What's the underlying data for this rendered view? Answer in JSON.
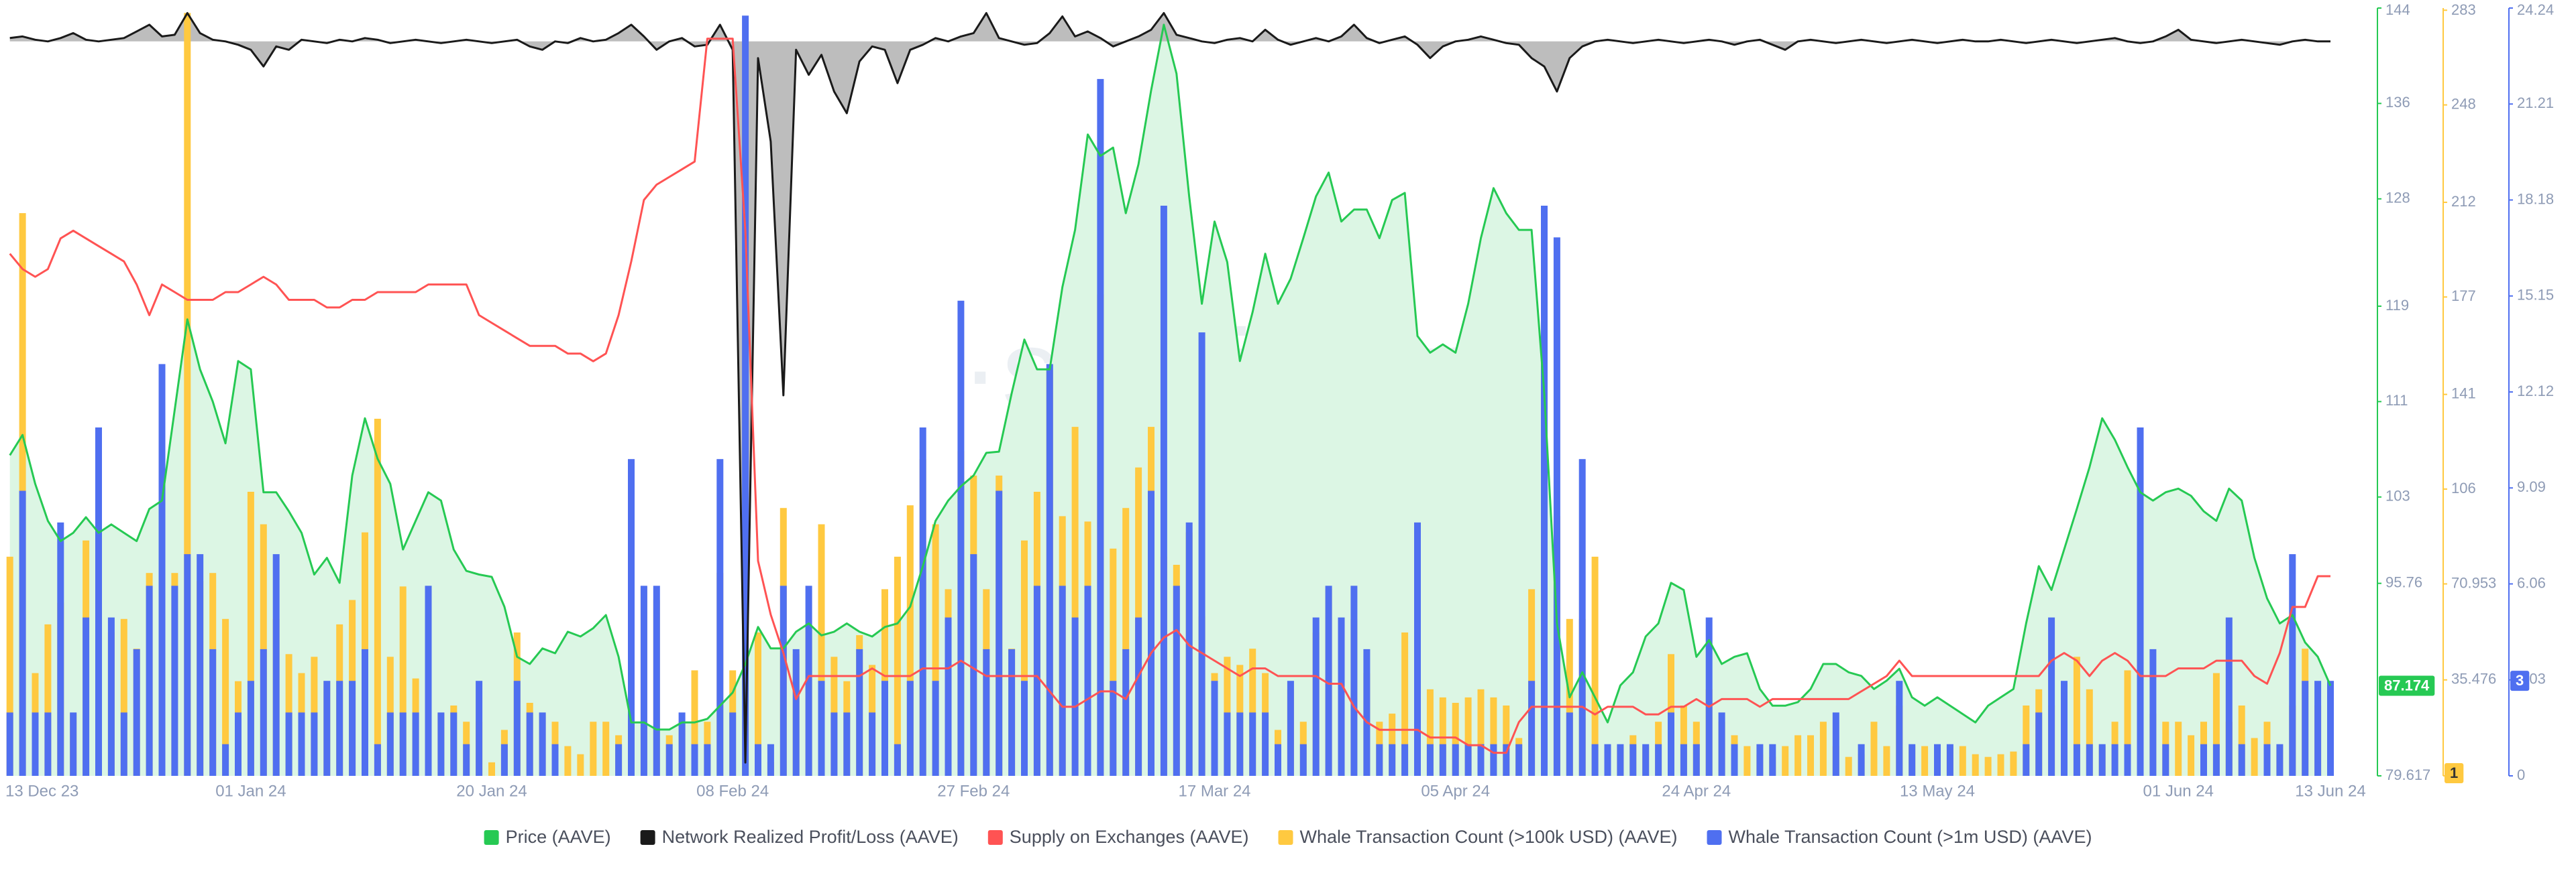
{
  "chart_data": {
    "type": "combo",
    "watermark": "·santiment·",
    "categories": [
      "13 Dec 23",
      null,
      null,
      null,
      null,
      null,
      null,
      null,
      null,
      null,
      null,
      null,
      null,
      null,
      null,
      null,
      null,
      null,
      null,
      "01 Jan 24",
      null,
      null,
      null,
      null,
      null,
      null,
      null,
      null,
      null,
      null,
      null,
      null,
      null,
      null,
      null,
      null,
      null,
      null,
      "20 Jan 24",
      null,
      null,
      null,
      null,
      null,
      null,
      null,
      null,
      null,
      null,
      null,
      null,
      null,
      null,
      null,
      null,
      null,
      null,
      "08 Feb 24",
      null,
      null,
      null,
      null,
      null,
      null,
      null,
      null,
      null,
      null,
      null,
      null,
      null,
      null,
      null,
      null,
      null,
      null,
      "27 Feb 24",
      null,
      null,
      null,
      null,
      null,
      null,
      null,
      null,
      null,
      null,
      null,
      null,
      null,
      null,
      null,
      null,
      null,
      null,
      "17 Mar 24",
      null,
      null,
      null,
      null,
      null,
      null,
      null,
      null,
      null,
      null,
      null,
      null,
      null,
      null,
      null,
      null,
      null,
      null,
      "05 Apr 24",
      null,
      null,
      null,
      null,
      null,
      null,
      null,
      null,
      null,
      null,
      null,
      null,
      null,
      null,
      null,
      null,
      null,
      null,
      "24 Apr 24",
      null,
      null,
      null,
      null,
      null,
      null,
      null,
      null,
      null,
      null,
      null,
      null,
      null,
      null,
      null,
      null,
      null,
      null,
      "13 May 24",
      null,
      null,
      null,
      null,
      null,
      null,
      null,
      null,
      null,
      null,
      null,
      null,
      null,
      null,
      null,
      null,
      null,
      null,
      "01 Jun 24",
      null,
      null,
      null,
      null,
      null,
      null,
      null,
      null,
      null,
      null,
      null,
      "13 Jun 24"
    ],
    "ylim": [
      79.617,
      144
    ],
    "yticks": [
      79.617,
      95.76,
      103,
      111,
      119,
      128,
      136,
      144
    ],
    "y2lim": [
      0,
      283.808
    ],
    "y2ticks": [
      0,
      35.476,
      70.953,
      106,
      141,
      177,
      212,
      248,
      283
    ],
    "y3lim": [
      0,
      24.24
    ],
    "y3ticks": [
      0,
      3.03,
      6.06,
      9.09,
      12.12,
      15.15,
      18.18,
      21.21,
      24.24
    ],
    "y4lim": [
      0,
      100
    ],
    "y5lim": [
      -440,
      20
    ],
    "grid": false,
    "legend": "bottom",
    "series": [
      {
        "name": "Price (AAVE)",
        "type": "area",
        "axis": "y",
        "color": "#26c953",
        "fill": "#dcf6e4",
        "values": [
          106.5,
          108.2,
          104.1,
          101,
          99.3,
          100,
          101.3,
          100,
          100.7,
          100,
          99.3,
          102,
          102.7,
          110.3,
          117.9,
          113.7,
          111,
          107.5,
          114.4,
          113.7,
          103.4,
          103.4,
          101.8,
          100,
          96.5,
          97.9,
          95.8,
          104.8,
          109.6,
          106.2,
          104.1,
          98.6,
          101,
          103.4,
          102.7,
          98.6,
          96.8,
          96.5,
          96.3,
          93.8,
          89.6,
          89,
          90.3,
          89.9,
          91.7,
          91.3,
          92,
          93.1,
          89.6,
          84.1,
          84.1,
          83.5,
          83.5,
          84.1,
          84.1,
          84.4,
          85.5,
          86.6,
          89,
          92.1,
          90.3,
          90.3,
          91.7,
          92.4,
          91.4,
          91.7,
          92.4,
          91.7,
          91.3,
          92.1,
          92.4,
          93.8,
          97.2,
          101,
          102.7,
          103.9,
          104.8,
          106.7,
          106.8,
          111.7,
          116.2,
          113.7,
          113.7,
          120.6,
          125.4,
          133.4,
          131.6,
          132.3,
          126.8,
          130.9,
          137.1,
          142.6,
          138.5,
          128.2,
          119.2,
          126.1,
          122.7,
          114.4,
          118.5,
          123.4,
          119.2,
          121.3,
          124.7,
          128.2,
          130.2,
          126.1,
          127.1,
          127.1,
          124.7,
          127.9,
          128.5,
          116.5,
          115.1,
          115.8,
          115.1,
          119.2,
          124.7,
          128.9,
          126.8,
          125.4,
          125.4,
          111.7,
          92.4,
          86.2,
          88.3,
          86.2,
          84.1,
          87.2,
          88.3,
          91.3,
          92.4,
          95.8,
          95.2,
          89.6,
          91,
          89,
          89.6,
          89.9,
          86.9,
          85.5,
          85.5,
          85.8,
          86.9,
          89,
          89,
          88.3,
          88,
          86.9,
          87.6,
          88.6,
          86.2,
          85.5,
          86.2,
          85.5,
          84.8,
          84.1,
          85.5,
          86.2,
          86.9,
          92.4,
          97.2,
          95.2,
          98.6,
          102,
          105.5,
          109.6,
          107.8,
          105.5,
          103.4,
          102.7,
          103.4,
          103.7,
          103.1,
          101.8,
          101,
          103.7,
          102.7,
          97.9,
          94.5,
          92.4,
          93.1,
          90.8,
          89.6,
          87.174
        ]
      },
      {
        "name": "Network Realized Profit/Loss (AAVE)",
        "type": "area",
        "axis": "y5",
        "color": "#1a1a1a",
        "fill": "#bdbdbd",
        "values": [
          2,
          3,
          1,
          0,
          2,
          5,
          1,
          0,
          1,
          2,
          6,
          10,
          3,
          4,
          17,
          5,
          1,
          0,
          -2,
          -5,
          -15,
          -3,
          -5,
          1,
          0,
          -1,
          1,
          0,
          2,
          1,
          -1,
          0,
          1,
          0,
          -1,
          0,
          1,
          0,
          -1,
          0,
          1,
          -3,
          -5,
          0,
          -1,
          2,
          0,
          1,
          5,
          10,
          3,
          -5,
          0,
          2,
          -3,
          -2,
          10,
          -5,
          -432,
          -10,
          -60,
          -212,
          -5,
          -20,
          -8,
          -30,
          -43,
          -12,
          -3,
          -5,
          -25,
          -5,
          -2,
          2,
          0,
          3,
          5,
          17,
          2,
          0,
          -2,
          -1,
          5,
          15,
          3,
          6,
          2,
          -3,
          0,
          3,
          7,
          17,
          4,
          2,
          0,
          -1,
          1,
          2,
          0,
          7,
          1,
          -2,
          0,
          2,
          0,
          3,
          10,
          2,
          -1,
          1,
          3,
          -2,
          -10,
          -3,
          0,
          1,
          3,
          1,
          -1,
          -2,
          -10,
          -15,
          -30,
          -10,
          -3,
          0,
          1,
          0,
          -1,
          0,
          1,
          0,
          -1,
          0,
          1,
          0,
          -2,
          0,
          1,
          -2,
          -5,
          0,
          1,
          0,
          -1,
          0,
          1,
          0,
          -1,
          0,
          1,
          0,
          -1,
          0,
          1,
          0,
          0,
          1,
          0,
          -1,
          0,
          1,
          0,
          -1,
          0,
          1,
          2,
          0,
          -1,
          0,
          3,
          7,
          1,
          0,
          -1,
          0,
          1,
          0,
          -1,
          -2,
          0,
          1,
          0,
          0
        ]
      },
      {
        "name": "Supply on Exchanges (AAVE)",
        "type": "line",
        "axis": "y4",
        "color": "#ff5353",
        "values": [
          68,
          66,
          65,
          66,
          70,
          71,
          70,
          69,
          68,
          67,
          64,
          60,
          64,
          63,
          62,
          62,
          62,
          63,
          63,
          64,
          65,
          64,
          62,
          62,
          62,
          61,
          61,
          62,
          62,
          63,
          63,
          63,
          63,
          64,
          64,
          64,
          64,
          60,
          59,
          58,
          57,
          56,
          56,
          56,
          55,
          55,
          54,
          55,
          60,
          67,
          75,
          77,
          78,
          79,
          80,
          96,
          96,
          96,
          71,
          28,
          21,
          16,
          10,
          13,
          13,
          13,
          13,
          13,
          14,
          13,
          13,
          13,
          14,
          14,
          14,
          15,
          14,
          13,
          13,
          13,
          13,
          13,
          11,
          9,
          9,
          10,
          11,
          11,
          10,
          13,
          16,
          18,
          19,
          17,
          16,
          15,
          14,
          13,
          14,
          14,
          13,
          13,
          13,
          13,
          12,
          12,
          9,
          7,
          6,
          6,
          6,
          6,
          5,
          5,
          5,
          4,
          4,
          3,
          3,
          7,
          9,
          9,
          9,
          9,
          9,
          8,
          9,
          9,
          9,
          8,
          8,
          9,
          9,
          10,
          9,
          10,
          10,
          10,
          9,
          10,
          10,
          10,
          10,
          10,
          10,
          10,
          11,
          12,
          13,
          15,
          13,
          13,
          13,
          13,
          13,
          13,
          13,
          13,
          13,
          13,
          13,
          15,
          16,
          15,
          13,
          15,
          16,
          15,
          13,
          13,
          13,
          14,
          14,
          14,
          15,
          15,
          15,
          13,
          12,
          16,
          22,
          22,
          26,
          26
        ]
      },
      {
        "name": "Whale Transaction Count (>100k USD) (AAVE)",
        "type": "bar",
        "axis": "y2",
        "color": "#ffc940",
        "values": [
          81,
          208,
          38,
          56,
          64,
          23,
          87,
          32,
          53,
          58,
          47,
          75,
          73,
          75,
          282,
          72,
          75,
          58,
          35,
          105,
          93,
          58,
          45,
          38,
          44,
          35,
          56,
          65,
          90,
          132,
          44,
          70,
          36,
          38,
          23,
          26,
          20,
          20,
          5,
          17,
          53,
          27,
          23,
          20,
          11,
          8,
          20,
          20,
          15,
          105,
          70,
          65,
          15,
          20,
          39,
          20,
          75,
          39,
          20,
          53,
          5,
          99,
          45,
          56,
          93,
          44,
          35,
          52,
          41,
          69,
          81,
          100,
          117,
          93,
          69,
          120,
          111,
          69,
          111,
          47,
          87,
          105,
          150,
          96,
          129,
          94,
          178,
          84,
          99,
          114,
          129,
          81,
          78,
          90,
          59,
          38,
          44,
          41,
          47,
          38,
          17,
          32,
          20,
          53,
          69,
          41,
          58,
          38,
          20,
          23,
          53,
          32,
          32,
          29,
          27,
          29,
          32,
          29,
          26,
          14,
          69,
          78,
          96,
          58,
          58,
          81,
          11,
          11,
          15,
          11,
          20,
          45,
          26,
          20,
          32,
          20,
          15,
          11,
          8,
          7,
          11,
          15,
          15,
          20,
          11,
          7,
          8,
          20,
          11,
          26,
          11,
          11,
          7,
          11,
          11,
          8,
          7,
          8,
          9,
          26,
          32,
          26,
          15,
          44,
          32,
          11,
          20,
          39,
          32,
          23,
          20,
          20,
          15,
          20,
          38,
          20,
          26,
          14,
          20,
          11,
          26,
          47,
          26,
          1
        ]
      },
      {
        "name": "Whale Transaction Count (>1m USD) (AAVE)",
        "type": "bar",
        "axis": "y3",
        "color": "#4f6ff0",
        "values": [
          2,
          9,
          2,
          2,
          8,
          2,
          5,
          11,
          5,
          2,
          4,
          6,
          13,
          6,
          7,
          7,
          4,
          1,
          2,
          3,
          4,
          7,
          2,
          2,
          2,
          3,
          3,
          3,
          4,
          1,
          2,
          2,
          2,
          6,
          2,
          2,
          1,
          3,
          0,
          1,
          3,
          2,
          2,
          1,
          0,
          0,
          0,
          0,
          1,
          10,
          6,
          6,
          1,
          2,
          1,
          1,
          10,
          2,
          24,
          1,
          1,
          6,
          4,
          6,
          3,
          2,
          2,
          4,
          2,
          3,
          1,
          3,
          11,
          3,
          5,
          15,
          7,
          4,
          9,
          4,
          3,
          6,
          13,
          6,
          5,
          6,
          22,
          3,
          4,
          5,
          9,
          18,
          6,
          8,
          14,
          3,
          2,
          2,
          2,
          2,
          1,
          3,
          1,
          5,
          6,
          5,
          6,
          4,
          1,
          1,
          1,
          8,
          1,
          1,
          1,
          1,
          1,
          1,
          1,
          1,
          3,
          18,
          17,
          2,
          10,
          1,
          1,
          1,
          1,
          1,
          1,
          2,
          1,
          1,
          5,
          2,
          1,
          0,
          1,
          1,
          0,
          0,
          0,
          0,
          2,
          0,
          1,
          0,
          0,
          3,
          1,
          0,
          1,
          1,
          0,
          0,
          0,
          0,
          0,
          1,
          2,
          5,
          3,
          1,
          1,
          1,
          1,
          1,
          11,
          4,
          1,
          0,
          0,
          1,
          1,
          5,
          1,
          0,
          1,
          1,
          7,
          3,
          3,
          3
        ]
      }
    ]
  }
}
